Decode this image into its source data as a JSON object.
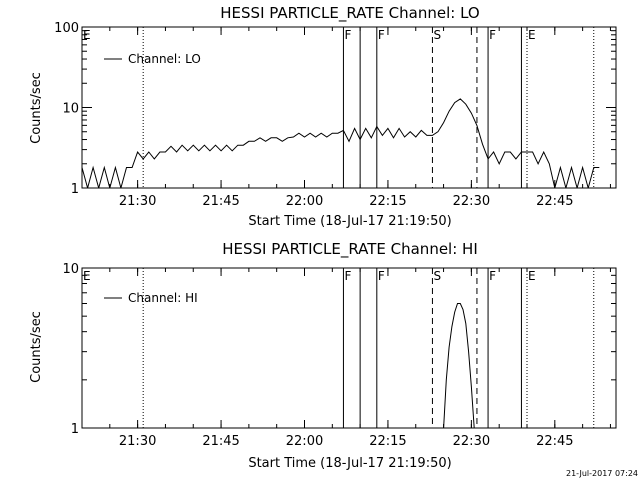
{
  "footer": {
    "timestamp": "21-Jul-2017 07:24"
  },
  "chart_data": [
    {
      "type": "line",
      "title": "HESSI PARTICLE_RATE Channel: LO",
      "xlabel": "Start Time (18-Jul-17 21:19:50)",
      "ylabel": "Counts/sec",
      "yscale": "log",
      "ylim": [
        1,
        100
      ],
      "y_ticks": [
        {
          "value": 1,
          "label": "1"
        },
        {
          "value": 10,
          "label": "10"
        },
        {
          "value": 100,
          "label": "100"
        }
      ],
      "xlim": [
        "21:20",
        "22:56"
      ],
      "x_ticks": [
        "21:30",
        "21:45",
        "22:00",
        "22:15",
        "22:30",
        "22:45"
      ],
      "legend": {
        "entry": "Channel: LO",
        "placement": "top-left"
      },
      "series": [
        {
          "name": "Channel: LO",
          "points": [
            [
              "21:20",
              1.8
            ],
            [
              "21:21",
              1.0
            ],
            [
              "21:22",
              1.8
            ],
            [
              "21:23",
              1.0
            ],
            [
              "21:24",
              1.8
            ],
            [
              "21:25",
              1.0
            ],
            [
              "21:26",
              1.8
            ],
            [
              "21:27",
              1.0
            ],
            [
              "21:28",
              1.8
            ],
            [
              "21:29",
              1.8
            ],
            [
              "21:30",
              2.8
            ],
            [
              "21:31",
              2.3
            ],
            [
              "21:32",
              2.8
            ],
            [
              "21:33",
              2.3
            ],
            [
              "21:34",
              2.8
            ],
            [
              "21:35",
              2.8
            ],
            [
              "21:36",
              3.3
            ],
            [
              "21:37",
              2.8
            ],
            [
              "21:38",
              3.4
            ],
            [
              "21:39",
              2.9
            ],
            [
              "21:40",
              3.4
            ],
            [
              "21:41",
              2.9
            ],
            [
              "21:42",
              3.4
            ],
            [
              "21:43",
              2.9
            ],
            [
              "21:44",
              3.4
            ],
            [
              "21:45",
              2.9
            ],
            [
              "21:46",
              3.4
            ],
            [
              "21:47",
              2.9
            ],
            [
              "21:48",
              3.4
            ],
            [
              "21:49",
              3.4
            ],
            [
              "21:50",
              3.8
            ],
            [
              "21:51",
              3.8
            ],
            [
              "21:52",
              4.2
            ],
            [
              "21:53",
              3.8
            ],
            [
              "21:54",
              4.2
            ],
            [
              "21:55",
              4.2
            ],
            [
              "21:56",
              3.8
            ],
            [
              "21:57",
              4.2
            ],
            [
              "21:58",
              4.3
            ],
            [
              "21:59",
              4.8
            ],
            [
              "22:00",
              4.3
            ],
            [
              "22:01",
              4.8
            ],
            [
              "22:02",
              4.3
            ],
            [
              "22:03",
              4.8
            ],
            [
              "22:04",
              4.3
            ],
            [
              "22:05",
              4.8
            ],
            [
              "22:06",
              4.8
            ],
            [
              "22:07",
              5.2
            ],
            [
              "22:08",
              3.8
            ],
            [
              "22:09",
              5.5
            ],
            [
              "22:10",
              4.0
            ],
            [
              "22:11",
              5.5
            ],
            [
              "22:12",
              4.2
            ],
            [
              "22:13",
              5.8
            ],
            [
              "22:14",
              4.5
            ],
            [
              "22:15",
              5.5
            ],
            [
              "22:16",
              4.2
            ],
            [
              "22:17",
              5.5
            ],
            [
              "22:18",
              4.3
            ],
            [
              "22:19",
              5.0
            ],
            [
              "22:20",
              4.3
            ],
            [
              "22:21",
              5.2
            ],
            [
              "22:22",
              4.5
            ],
            [
              "22:23",
              4.5
            ],
            [
              "22:24",
              5.0
            ],
            [
              "22:25",
              6.5
            ],
            [
              "22:26",
              9.0
            ],
            [
              "22:27",
              11.5
            ],
            [
              "22:28",
              12.8
            ],
            [
              "22:29",
              11.0
            ],
            [
              "22:30",
              8.5
            ],
            [
              "22:31",
              6.0
            ],
            [
              "22:32",
              3.5
            ],
            [
              "22:33",
              2.3
            ],
            [
              "22:34",
              2.8
            ],
            [
              "22:35",
              2.0
            ],
            [
              "22:36",
              2.8
            ],
            [
              "22:37",
              2.8
            ],
            [
              "22:38",
              2.3
            ],
            [
              "22:39",
              2.8
            ],
            [
              "22:40",
              2.8
            ],
            [
              "22:41",
              2.8
            ],
            [
              "22:42",
              2.0
            ],
            [
              "22:43",
              2.8
            ],
            [
              "22:44",
              2.0
            ],
            [
              "22:45",
              1.0
            ],
            [
              "22:46",
              1.8
            ],
            [
              "22:47",
              1.0
            ],
            [
              "22:48",
              1.8
            ],
            [
              "22:49",
              1.0
            ],
            [
              "22:50",
              1.8
            ],
            [
              "22:51",
              1.0
            ],
            [
              "22:52",
              1.8
            ],
            [
              "22:53",
              1.8
            ]
          ]
        }
      ],
      "markers": [
        {
          "time": "21:20",
          "label": "E",
          "style": "dotted"
        },
        {
          "time": "21:31",
          "label": "",
          "style": "dotted"
        },
        {
          "time": "22:07",
          "label": "F",
          "style": "solid"
        },
        {
          "time": "22:10",
          "label": "",
          "style": "solid"
        },
        {
          "time": "22:13",
          "label": "F",
          "style": "solid"
        },
        {
          "time": "22:23",
          "label": "S",
          "style": "dashed"
        },
        {
          "time": "22:31",
          "label": "",
          "style": "dashed"
        },
        {
          "time": "22:33",
          "label": "F",
          "style": "solid"
        },
        {
          "time": "22:39",
          "label": "",
          "style": "solid"
        },
        {
          "time": "22:40",
          "label": "E",
          "style": "dotted"
        },
        {
          "time": "22:52",
          "label": "",
          "style": "dotted"
        }
      ]
    },
    {
      "type": "line",
      "title": "HESSI PARTICLE_RATE Channel: HI",
      "xlabel": "Start Time (18-Jul-17 21:19:50)",
      "ylabel": "Counts/sec",
      "yscale": "log",
      "ylim": [
        1,
        10
      ],
      "y_ticks": [
        {
          "value": 1,
          "label": "1"
        },
        {
          "value": 10,
          "label": "10"
        }
      ],
      "xlim": [
        "21:20",
        "22:56"
      ],
      "x_ticks": [
        "21:30",
        "21:45",
        "22:00",
        "22:15",
        "22:30",
        "22:45"
      ],
      "legend": {
        "entry": "Channel: HI",
        "placement": "top-left"
      },
      "series": [
        {
          "name": "Channel: HI",
          "points": [
            [
              "22:25",
              1.0
            ],
            [
              "22:25.5",
              2.0
            ],
            [
              "22:26",
              3.2
            ],
            [
              "22:26.5",
              4.3
            ],
            [
              "22:27",
              5.3
            ],
            [
              "22:27.5",
              6.0
            ],
            [
              "22:28",
              6.0
            ],
            [
              "22:28.5",
              5.5
            ],
            [
              "22:29",
              4.5
            ],
            [
              "22:29.5",
              3.0
            ],
            [
              "22:30",
              1.8
            ],
            [
              "22:30.5",
              1.0
            ]
          ]
        }
      ],
      "markers": [
        {
          "time": "21:20",
          "label": "E",
          "style": "dotted"
        },
        {
          "time": "21:31",
          "label": "",
          "style": "dotted"
        },
        {
          "time": "22:07",
          "label": "F",
          "style": "solid"
        },
        {
          "time": "22:10",
          "label": "",
          "style": "solid"
        },
        {
          "time": "22:13",
          "label": "F",
          "style": "solid"
        },
        {
          "time": "22:23",
          "label": "S",
          "style": "dashed"
        },
        {
          "time": "22:31",
          "label": "",
          "style": "dashed"
        },
        {
          "time": "22:33",
          "label": "F",
          "style": "solid"
        },
        {
          "time": "22:39",
          "label": "",
          "style": "solid"
        },
        {
          "time": "22:40",
          "label": "E",
          "style": "dotted"
        },
        {
          "time": "22:52",
          "label": "",
          "style": "dotted"
        }
      ]
    }
  ]
}
